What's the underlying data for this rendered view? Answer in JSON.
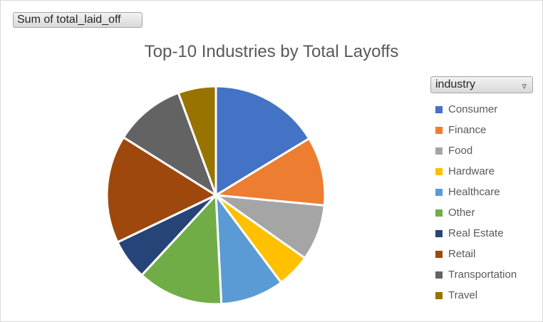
{
  "field_button": {
    "label": "Sum of total_laid_off"
  },
  "legend_header": {
    "label": "industry"
  },
  "chart_data": {
    "type": "pie",
    "title": "Top-10 Industries by Total Layoffs",
    "categories": [
      "Consumer",
      "Finance",
      "Food",
      "Hardware",
      "Healthcare",
      "Other",
      "Real Estate",
      "Retail",
      "Transportation",
      "Travel"
    ],
    "values": [
      16.3,
      10.2,
      8.3,
      5.0,
      9.4,
      12.7,
      6.0,
      16.0,
      10.5,
      5.6
    ],
    "colors": [
      "#4472c4",
      "#ed7d31",
      "#a5a5a5",
      "#ffc000",
      "#5b9bd5",
      "#70ad47",
      "#264478",
      "#9e480e",
      "#636363",
      "#997300"
    ],
    "legend_position": "right"
  }
}
